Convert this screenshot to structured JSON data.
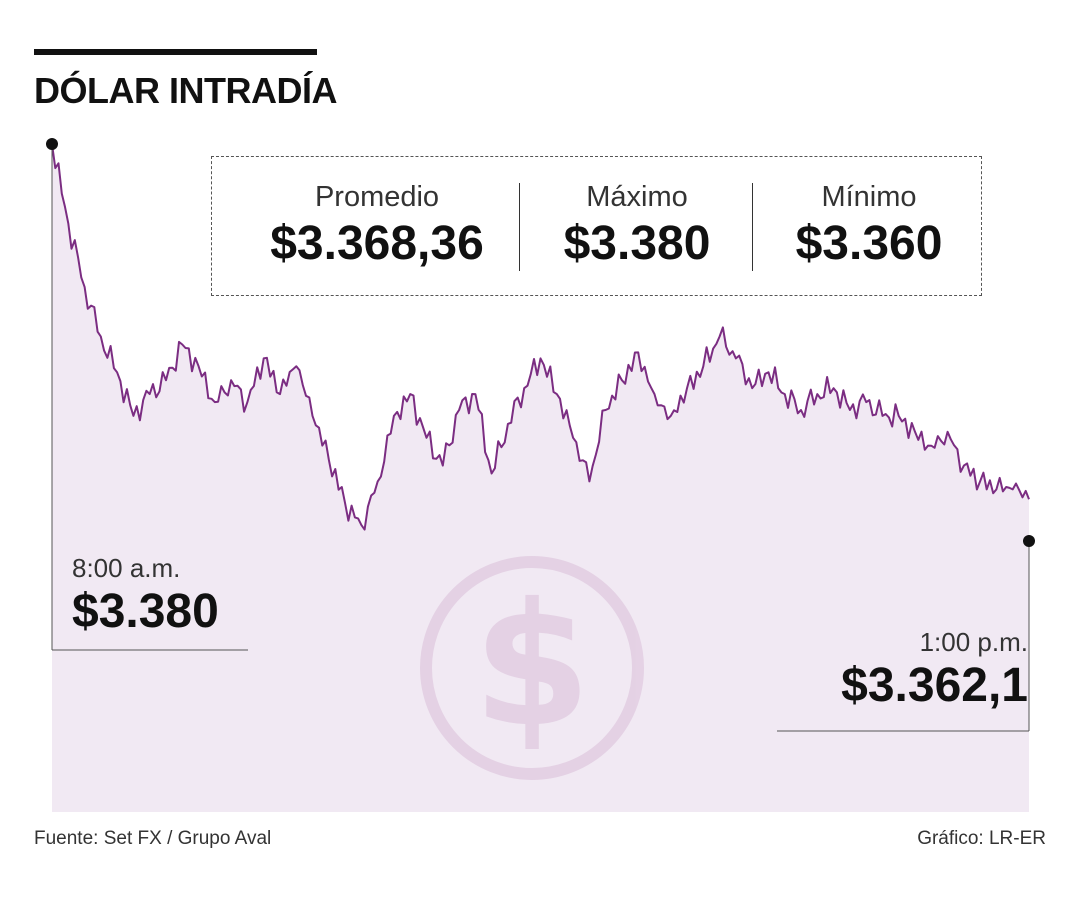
{
  "header": {
    "title": "DÓLAR INTRADÍA"
  },
  "stats": [
    {
      "label": "Promedio",
      "value": "$3.368,36"
    },
    {
      "label": "Máximo",
      "value": "$3.380"
    },
    {
      "label": "Mínimo",
      "value": "$3.360"
    }
  ],
  "start": {
    "time": "8:00 a.m.",
    "price": "$3.380"
  },
  "end": {
    "time": "1:00 p.m.",
    "price": "$3.362,1"
  },
  "footer": {
    "source": "Fuente: Set FX / Grupo Aval",
    "credit": "Gráfico: LR-ER"
  },
  "colors": {
    "line": "#7b2d82",
    "area": "#f1e9f3",
    "watermark": "#e3cfe3",
    "marker": "#111111"
  },
  "watermark_icon": "dollar-coin-icon",
  "chart_data": {
    "type": "area",
    "title": "DÓLAR INTRADÍA",
    "x_range": [
      "8:00 a.m.",
      "1:00 p.m."
    ],
    "y_range": [
      3360,
      3380
    ],
    "grid": false,
    "series": [
      {
        "x": [
          "8:00",
          "8:05",
          "8:10",
          "8:15",
          "8:20",
          "8:25",
          "8:30",
          "8:35",
          "8:40",
          "8:45",
          "8:50",
          "8:55",
          "9:00",
          "9:05",
          "9:10",
          "9:15",
          "9:20",
          "9:25",
          "9:30",
          "9:35",
          "9:40",
          "9:45",
          "9:50",
          "9:55",
          "10:00",
          "10:05",
          "10:10",
          "10:15",
          "10:20",
          "10:25",
          "10:30",
          "10:35",
          "10:40",
          "10:45",
          "10:50",
          "10:55",
          "11:00",
          "11:05",
          "11:10",
          "11:15",
          "11:20",
          "11:25",
          "11:30",
          "11:35",
          "11:40",
          "11:45",
          "11:50",
          "11:55",
          "12:00",
          "12:05",
          "12:10",
          "12:15",
          "12:20",
          "12:25",
          "12:30",
          "12:35",
          "12:40",
          "12:45",
          "12:50",
          "12:55",
          "13:00"
        ],
        "values": [
          3380.0,
          3376.0,
          3372.8,
          3370.3,
          3368.5,
          3366.3,
          3367.4,
          3368.1,
          3369.9,
          3368.8,
          3367.0,
          3368.1,
          3367.0,
          3369.2,
          3367.4,
          3368.8,
          3366.3,
          3364.1,
          3361.9,
          3360.8,
          3363.0,
          3366.3,
          3367.4,
          3365.2,
          3363.8,
          3366.6,
          3367.4,
          3363.4,
          3365.9,
          3367.7,
          3369.2,
          3367.4,
          3365.2,
          3363.0,
          3366.6,
          3368.1,
          3369.5,
          3367.4,
          3366.3,
          3367.7,
          3368.8,
          3370.3,
          3369.2,
          3367.7,
          3368.5,
          3367.4,
          3366.6,
          3367.4,
          3367.7,
          3366.6,
          3367.0,
          3366.3,
          3366.3,
          3365.5,
          3364.8,
          3365.5,
          3363.8,
          3363.0,
          3362.6,
          3362.6,
          3362.1
        ]
      }
    ],
    "annotations": [
      "8:00 a.m. $3.380",
      "1:00 p.m. $3.362,1"
    ]
  }
}
